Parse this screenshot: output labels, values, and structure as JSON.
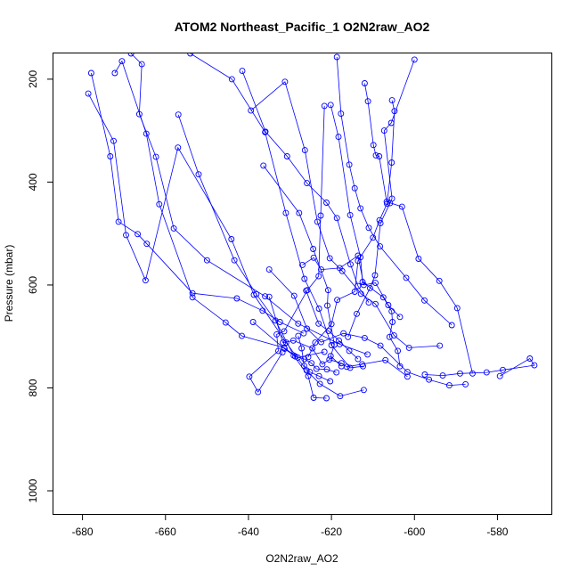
{
  "chart_data": {
    "type": "scatter",
    "title": "ATOM2 Northeast_Pacific_1 O2N2raw_AO2",
    "xlabel": "O2N2raw_AO2",
    "ylabel": "Pressure (mbar)",
    "xlim": [
      -687,
      -567
    ],
    "ylim": [
      1045,
      150
    ],
    "y_inverted": true,
    "xticks": [
      -680,
      -660,
      -640,
      -620,
      -600,
      -580
    ],
    "yticks": [
      200,
      400,
      600,
      800,
      1000
    ],
    "grid": false,
    "legend": "none",
    "series_color": "#0000ff",
    "marker": "open-circle",
    "series": [
      {
        "x": [
          -668.3,
          -665.7,
          -666.3,
          -662.3,
          -658.0,
          -650.0,
          -636.0,
          -628.0,
          -618.0,
          -611.3
        ],
        "y": [
          150,
          171,
          268,
          351,
          490,
          552,
          622,
          675,
          715,
          735
        ]
      },
      {
        "x": [
          -677.9,
          -673.3,
          -671.3,
          -666.7,
          -664.5,
          -653.5,
          -642.8,
          -636.6,
          -632.4,
          -626.7
        ],
        "y": [
          188,
          350,
          477,
          501,
          520,
          616,
          626,
          650,
          672,
          694
        ]
      },
      {
        "x": [
          -672.2,
          -670.5,
          -664.6,
          -661.5,
          -653.5,
          -645.5,
          -641.6,
          -631.4,
          -628.1,
          -621.7
        ],
        "y": [
          188,
          165,
          306,
          443,
          624,
          673,
          699,
          722,
          741,
          730
        ]
      },
      {
        "x": [
          -678.6,
          -672.5,
          -669.5,
          -664.8,
          -657.0,
          -644.1,
          -638.7,
          -630.9,
          -626.0,
          -622.8,
          -617.9,
          -612.2
        ],
        "y": [
          228,
          320,
          503,
          591,
          333,
          511,
          619,
          712,
          766,
          792,
          816,
          804
        ]
      },
      {
        "x": [
          -656.9,
          -652.0,
          -643.4,
          -638.1,
          -633.5,
          -629.1,
          -625.6,
          -624.3,
          -621.2
        ],
        "y": [
          269,
          385,
          552,
          618,
          669,
          737,
          777,
          819,
          820
        ]
      },
      {
        "x": [
          -654.0,
          -644.0,
          -636.0,
          -631.0,
          -626.5,
          -623.0,
          -620.0,
          -615.5,
          -612.4
        ],
        "y": [
          150,
          200,
          303,
          460,
          588,
          646,
          717,
          761,
          758
        ]
      },
      {
        "x": [
          -621.7,
          -622.6,
          -623.1,
          -625.8,
          -631.4,
          -633.2,
          -632.8,
          -639.8,
          -637.7,
          -631.8
        ],
        "y": [
          252,
          465,
          583,
          610,
          690,
          696,
          728,
          778,
          808,
          731
        ]
      },
      {
        "x": [
          -639.4,
          -631.2,
          -626.4,
          -623.4,
          -620.4,
          -617.4,
          -612.9,
          -609.4,
          -604.9,
          -601.3,
          -593.9
        ],
        "y": [
          261,
          205,
          338,
          477,
          548,
          573,
          617,
          637,
          698,
          722,
          718
        ]
      },
      {
        "x": [
          -641.5,
          -635.9,
          -630.7,
          -625.9,
          -621.2,
          -618.7,
          -615.4,
          -613.6,
          -611.0
        ],
        "y": [
          184,
          302,
          350,
          402,
          440,
          470,
          560,
          602,
          634
        ]
      },
      {
        "x": [
          -620.2,
          -618.3,
          -615.5,
          -613.0,
          -612.5,
          -607.5,
          -605.5,
          -605.3,
          -606.0,
          -604.0,
          -603.5
        ],
        "y": [
          250,
          312,
          464,
          546,
          594,
          624,
          651,
          672,
          701,
          728,
          758
        ]
      },
      {
        "x": [
          -618.7,
          -617.7,
          -615.7,
          -614.4,
          -613.0,
          -611.0,
          -608.3,
          -602.0,
          -597.6,
          -591.0
        ],
        "y": [
          157,
          267,
          366,
          412,
          451,
          489,
          525,
          586,
          630,
          678
        ]
      },
      {
        "x": [
          -612.0,
          -611.2,
          -609.9,
          -609.3,
          -608.5,
          -606.7,
          -603.0,
          -599.0,
          -594.0,
          -589.7,
          -586.0
        ],
        "y": [
          208,
          243,
          328,
          348,
          350,
          438,
          448,
          549,
          592,
          645,
          772
        ]
      },
      {
        "x": [
          -605.4,
          -604.8,
          -605.5,
          -606.6,
          -608.4,
          -610.0,
          -613.6,
          -614.4,
          -618.6,
          -620.0,
          -623.9,
          -625.6
        ],
        "y": [
          241,
          262,
          362,
          442,
          474,
          508,
          553,
          613,
          629,
          676,
          712,
          740
        ]
      },
      {
        "x": [
          -600.0,
          -605.6,
          -607.3,
          -605.4,
          -605.9,
          -608.2,
          -609.5,
          -610.7,
          -613.9,
          -616.0
        ],
        "y": [
          162,
          285,
          300,
          432,
          441,
          480,
          581,
          606,
          656,
          701
        ]
      },
      {
        "x": [
          -636.4,
          -627.8,
          -624.4,
          -620.8,
          -621.0,
          -619.3,
          -620.2,
          -617.6
        ],
        "y": [
          368,
          460,
          530,
          610,
          640,
          716,
          738,
          758
        ]
      },
      {
        "x": [
          -635.0,
          -629.0,
          -625.9,
          -622.5,
          -617.1,
          -612.0,
          -608.2,
          -601.7,
          -596.5,
          -591.6,
          -587.7
        ],
        "y": [
          570,
          621,
          685,
          711,
          694,
          703,
          718,
          769,
          784,
          795,
          793
        ]
      },
      {
        "x": [
          -627.0,
          -624.3,
          -622.5,
          -618.0,
          -613.6,
          -612.2,
          -609.4,
          -606.3,
          -603.5
        ],
        "y": [
          561,
          547,
          570,
          567,
          543,
          600,
          596,
          639,
          662
        ]
      },
      {
        "x": [
          -635.0,
          -631.7,
          -629.2,
          -624.6,
          -622.2,
          -620.5,
          -617.6,
          -616.3,
          -612.6,
          -607.0,
          -601.7
        ],
        "y": [
          623,
          712,
          708,
          723,
          754,
          745,
          752,
          759,
          754,
          746,
          778
        ]
      },
      {
        "x": [
          -638.9,
          -631.3,
          -628.7,
          -626.5,
          -624.8,
          -623.6,
          -621.1,
          -618.8
        ],
        "y": [
          672,
          724,
          739,
          744,
          752,
          763,
          764,
          770
        ]
      },
      {
        "x": [
          -628.0,
          -627.2,
          -626.6,
          -625.2,
          -623.0,
          -620.3
        ],
        "y": [
          699,
          723,
          757,
          769,
          777,
          787
        ]
      },
      {
        "x": [
          -626.1,
          -623.1,
          -620.7,
          -618.2,
          -615.7,
          -613.6
        ],
        "y": [
          611,
          675,
          689,
          708,
          728,
          744
        ]
      },
      {
        "x": [
          -597.5,
          -593.2,
          -589.0,
          -582.6,
          -578.7,
          -571.1,
          -572.2,
          -579.4
        ],
        "y": [
          774,
          776,
          772,
          770,
          765,
          756,
          743,
          777
        ]
      }
    ]
  }
}
